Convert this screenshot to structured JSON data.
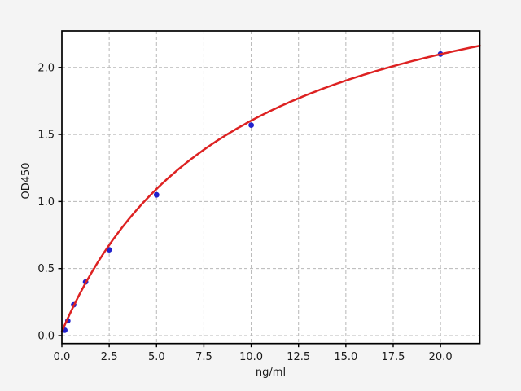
{
  "figure": {
    "background_color": "#f4f4f4",
    "plot_background_color": "#ffffff",
    "spine_color": "#000000"
  },
  "chart_data": {
    "type": "scatter",
    "title": "",
    "xlabel": "ng/ml",
    "ylabel": "OD450",
    "series": [
      {
        "name": "standards",
        "style": "points",
        "x": [
          0.156,
          0.3125,
          0.625,
          1.25,
          2.5,
          5,
          10,
          20
        ],
        "y": [
          0.04,
          0.11,
          0.23,
          0.4,
          0.64,
          1.05,
          1.57,
          2.1
        ]
      },
      {
        "name": "4pl-fit-curve",
        "style": "line",
        "fit": {
          "type": "4PL",
          "a": 0.03,
          "b": 1.0,
          "c": 9.2,
          "d": 3.05
        }
      }
    ],
    "x_ticks": [
      0,
      2.5,
      5,
      7.5,
      10,
      12.5,
      15,
      17.5,
      20
    ],
    "x_tick_labels": [
      "0.0",
      "2.5",
      "5.0",
      "7.5",
      "10.0",
      "12.5",
      "15.0",
      "17.5",
      "20.0"
    ],
    "y_ticks": [
      0,
      0.5,
      1.0,
      1.5,
      2.0
    ],
    "y_tick_labels": [
      "0.0",
      "0.5",
      "1.0",
      "1.5",
      "2.0"
    ],
    "xlim": [
      0,
      22.08
    ],
    "ylim": [
      -0.059,
      2.272
    ],
    "grid": true,
    "grid_style": "dashed",
    "legend": false,
    "colors": {
      "curve": "#dd2222",
      "marker": "#2222cc",
      "grid": "#b8b8b8",
      "tick_label": "#1a1a1a"
    }
  }
}
